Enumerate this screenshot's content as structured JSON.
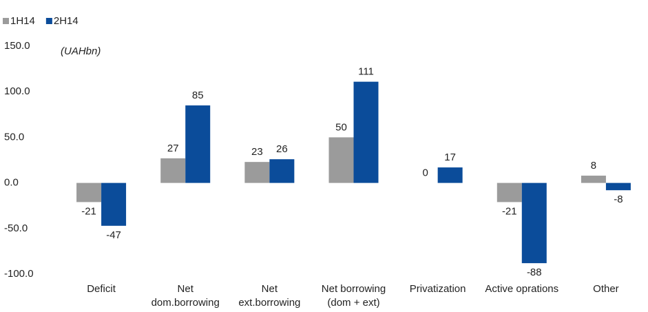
{
  "chart_data": {
    "type": "bar",
    "y_axis_label": "(UAHbn)",
    "categories": [
      [
        "Deficit"
      ],
      [
        "Net",
        "dom.borrowing"
      ],
      [
        "Net",
        "ext.borrowing"
      ],
      [
        "Net borrowing",
        "(dom + ext)"
      ],
      [
        "Privatization"
      ],
      [
        "Active oprations"
      ],
      [
        "Other"
      ]
    ],
    "series": [
      {
        "name": "1H14",
        "color": "#9b9b9b",
        "values": [
          -21,
          27,
          23,
          50,
          0,
          -21,
          8
        ]
      },
      {
        "name": "2H14",
        "color": "#0b4c9a",
        "values": [
          -47,
          85,
          26,
          111,
          17,
          -88,
          -8
        ]
      }
    ],
    "ylim": [
      -100,
      150
    ],
    "yticks": [
      {
        "value": -100,
        "label": "-100.0"
      },
      {
        "value": -50,
        "label": "-50.0"
      },
      {
        "value": 0,
        "label": "0.0"
      },
      {
        "value": 50,
        "label": "50.0"
      },
      {
        "value": 100,
        "label": "100.0"
      },
      {
        "value": 150,
        "label": "150.0"
      }
    ],
    "grid": false,
    "legend": "top-left"
  }
}
